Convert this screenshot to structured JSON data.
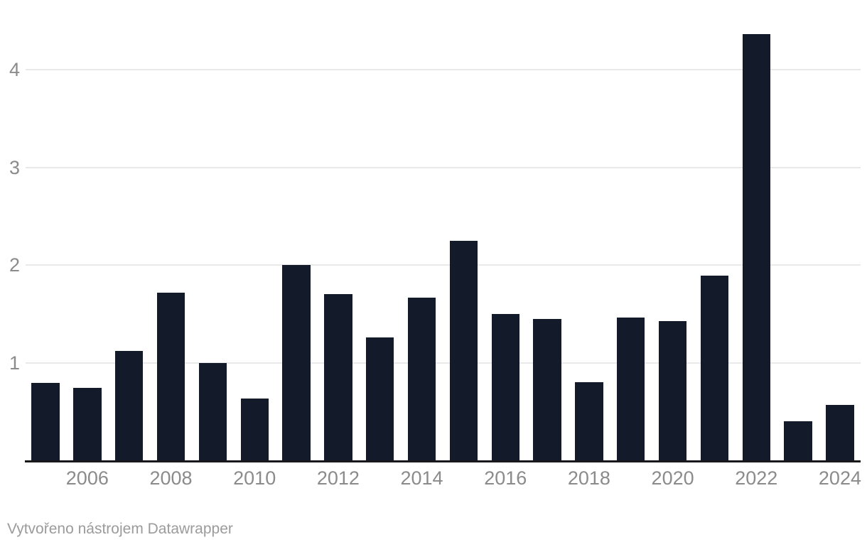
{
  "footer": {
    "attribution": "Vytvořeno nástrojem Datawrapper"
  },
  "colors": {
    "bar": "#131b2b",
    "gridline": "#e9e9e9",
    "baseline": "#18181b",
    "tick_label": "#8b8b8b",
    "attribution_text": "#9b9b9b",
    "background": "#ffffff"
  },
  "chart_data": {
    "type": "bar",
    "title": "",
    "xlabel": "",
    "ylabel": "",
    "categories": [
      2005,
      2006,
      2007,
      2008,
      2009,
      2010,
      2011,
      2012,
      2013,
      2014,
      2015,
      2016,
      2017,
      2018,
      2019,
      2020,
      2021,
      2022,
      2023,
      2024
    ],
    "values": [
      0.79,
      0.74,
      1.12,
      1.72,
      1.0,
      0.63,
      2.0,
      1.7,
      1.26,
      1.67,
      2.25,
      1.5,
      1.45,
      0.8,
      1.46,
      1.43,
      1.89,
      4.37,
      0.4,
      0.57
    ],
    "ylim": [
      0,
      4.57
    ],
    "y_ticks": [
      1,
      2,
      3,
      4
    ],
    "y_tick_labels": [
      "1",
      "2",
      "3",
      "4"
    ],
    "x_tick_labels": [
      "2006",
      "2008",
      "2010",
      "2012",
      "2014",
      "2016",
      "2018",
      "2020",
      "2022",
      "2024"
    ],
    "x_tick_categories": [
      2006,
      2008,
      2010,
      2012,
      2014,
      2016,
      2018,
      2020,
      2022,
      2024
    ],
    "grid": "horizontal gridlines on",
    "legend": "none",
    "bar_color": "#131b2b"
  }
}
